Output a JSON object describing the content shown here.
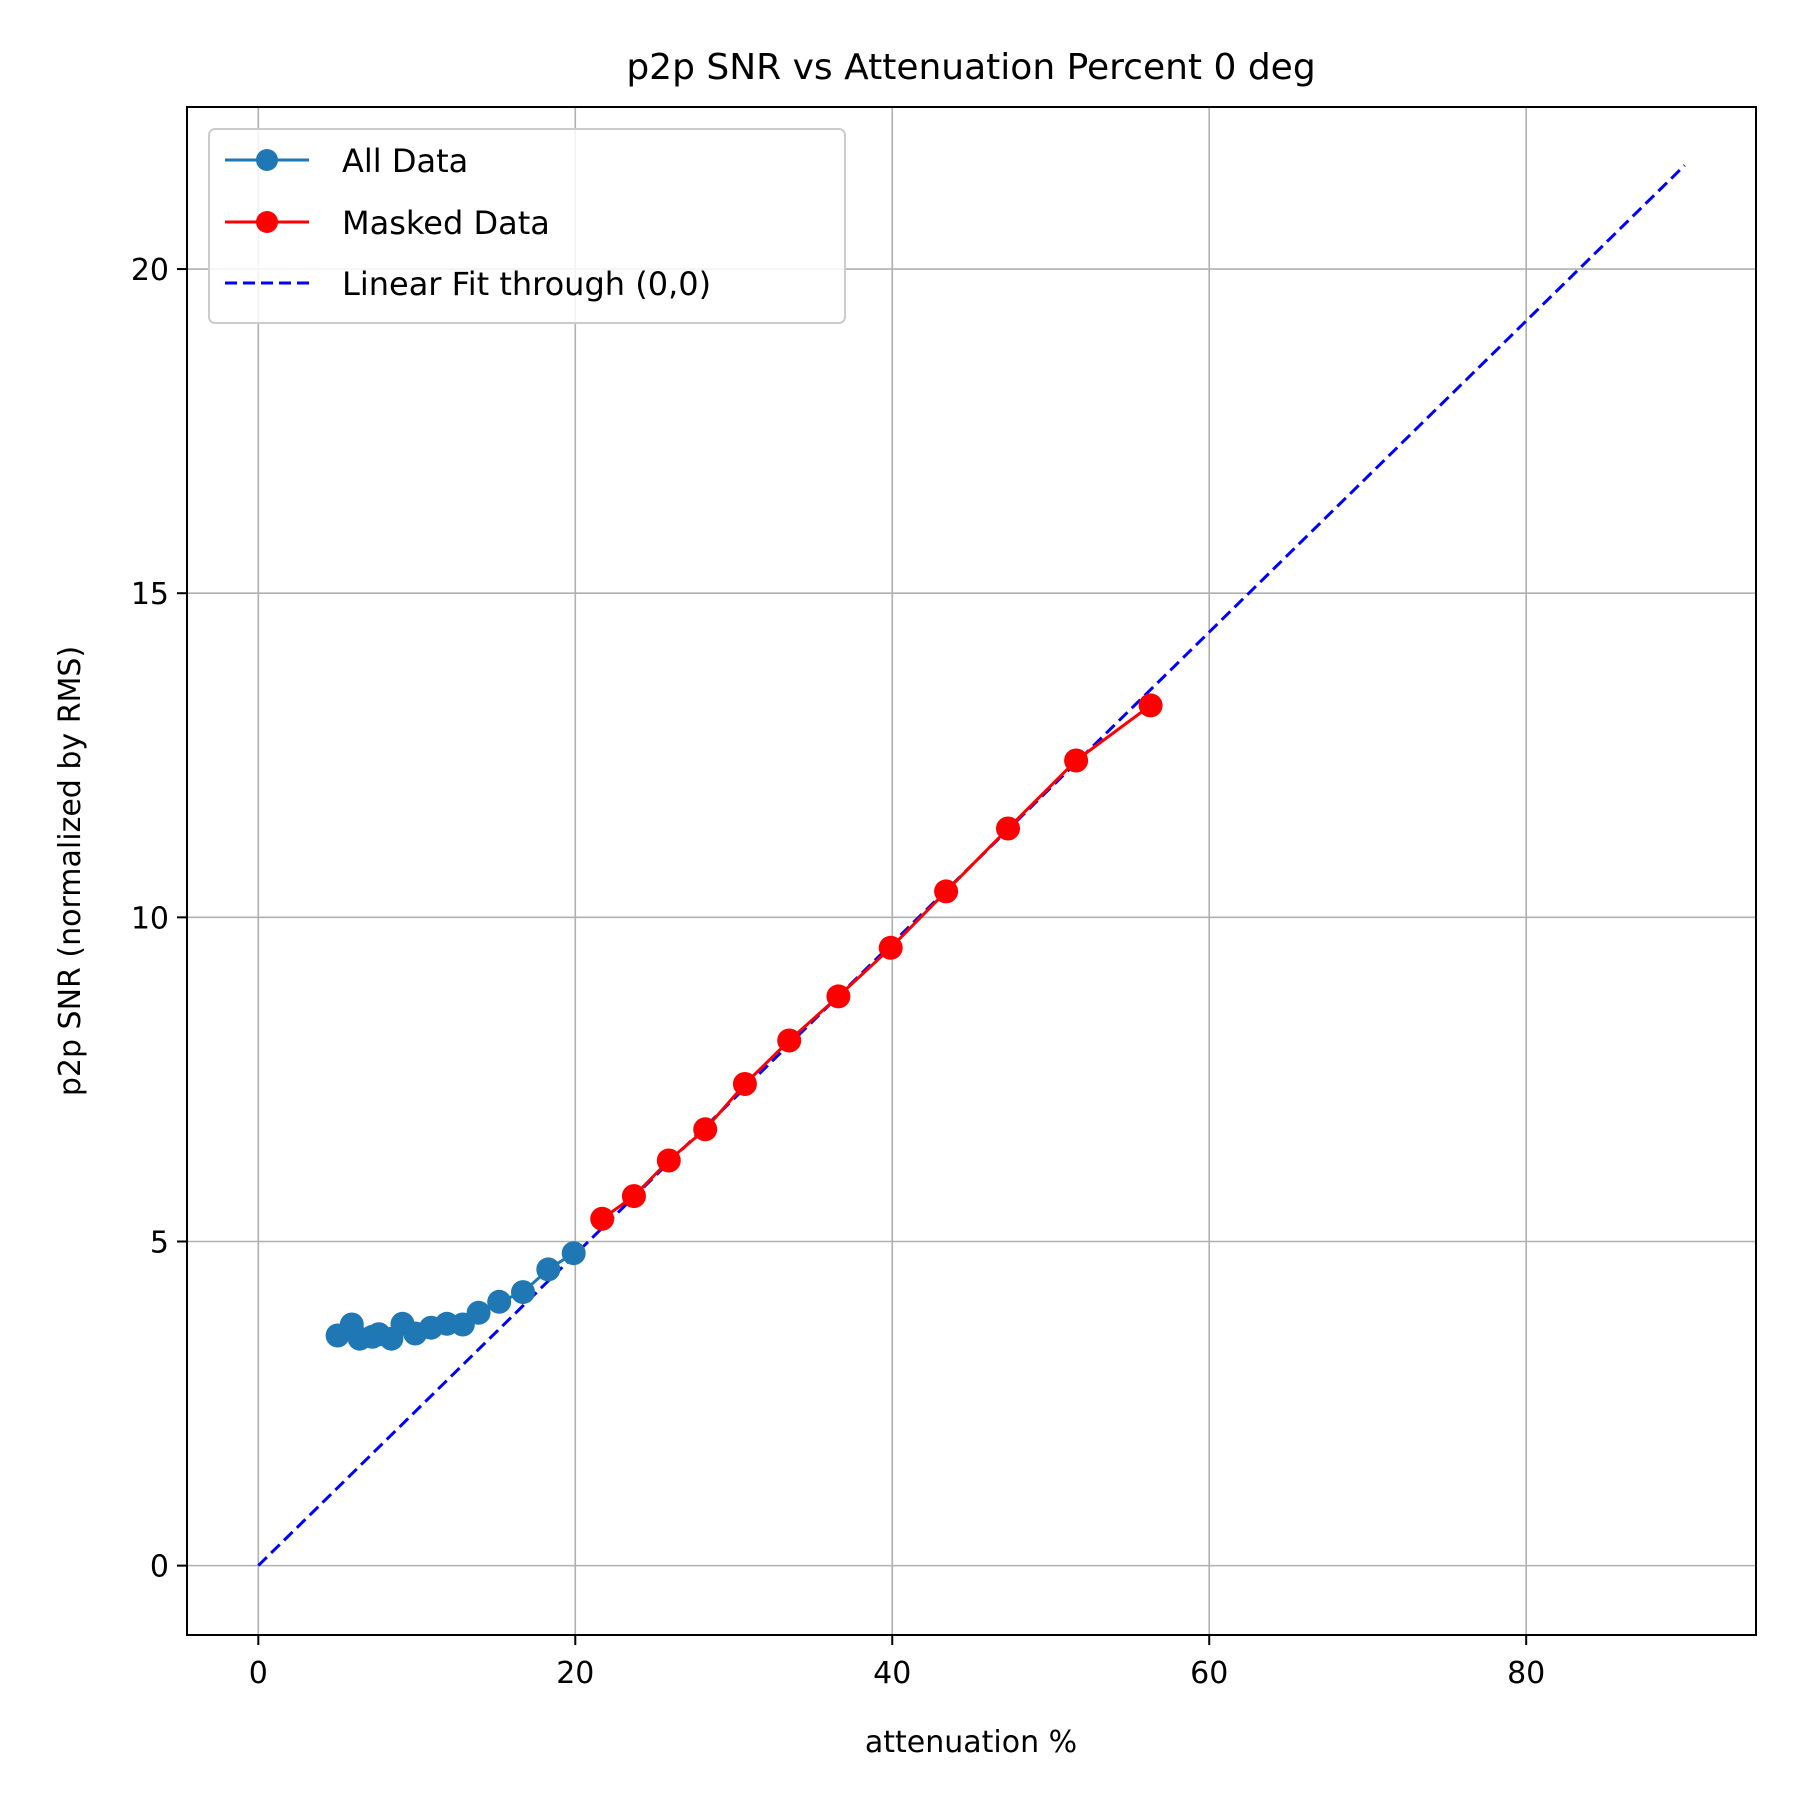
{
  "chart_data": {
    "type": "line",
    "title": "p2p SNR vs Attenuation Percent 0 deg",
    "xlabel": "attenuation %",
    "ylabel": "p2p SNR (normalized by RMS)",
    "xlim": [
      -4.5,
      94.5
    ],
    "ylim": [
      -1.07,
      22.5
    ],
    "xticks": [
      0,
      20,
      40,
      60,
      80
    ],
    "yticks": [
      0,
      5,
      10,
      15,
      20
    ],
    "grid": true,
    "legend_position": "upper-left",
    "series": [
      {
        "name": "All Data",
        "color": "#1f77b4",
        "style": "solid-marker",
        "x": [
          5.0,
          5.9,
          6.4,
          7.2,
          7.6,
          8.4,
          9.1,
          9.9,
          10.9,
          11.9,
          12.9,
          13.9,
          15.2,
          16.7,
          18.3,
          19.9
        ],
        "y": [
          3.55,
          3.72,
          3.5,
          3.53,
          3.57,
          3.5,
          3.73,
          3.58,
          3.67,
          3.73,
          3.72,
          3.9,
          4.07,
          4.22,
          4.57,
          4.82
        ]
      },
      {
        "name": "Masked Data",
        "color": "#ff0000",
        "style": "solid-marker",
        "x": [
          21.7,
          23.7,
          25.9,
          28.2,
          30.7,
          33.5,
          36.6,
          39.9,
          43.4,
          47.3,
          51.6,
          56.3
        ],
        "y": [
          5.35,
          5.7,
          6.25,
          6.73,
          7.43,
          8.1,
          8.78,
          9.53,
          10.4,
          11.37,
          12.42,
          13.27
        ]
      },
      {
        "name": "Linear Fit through (0,0)",
        "color": "#0000ff",
        "style": "dashed",
        "x": [
          0,
          90
        ],
        "y": [
          0,
          21.6
        ]
      }
    ]
  }
}
